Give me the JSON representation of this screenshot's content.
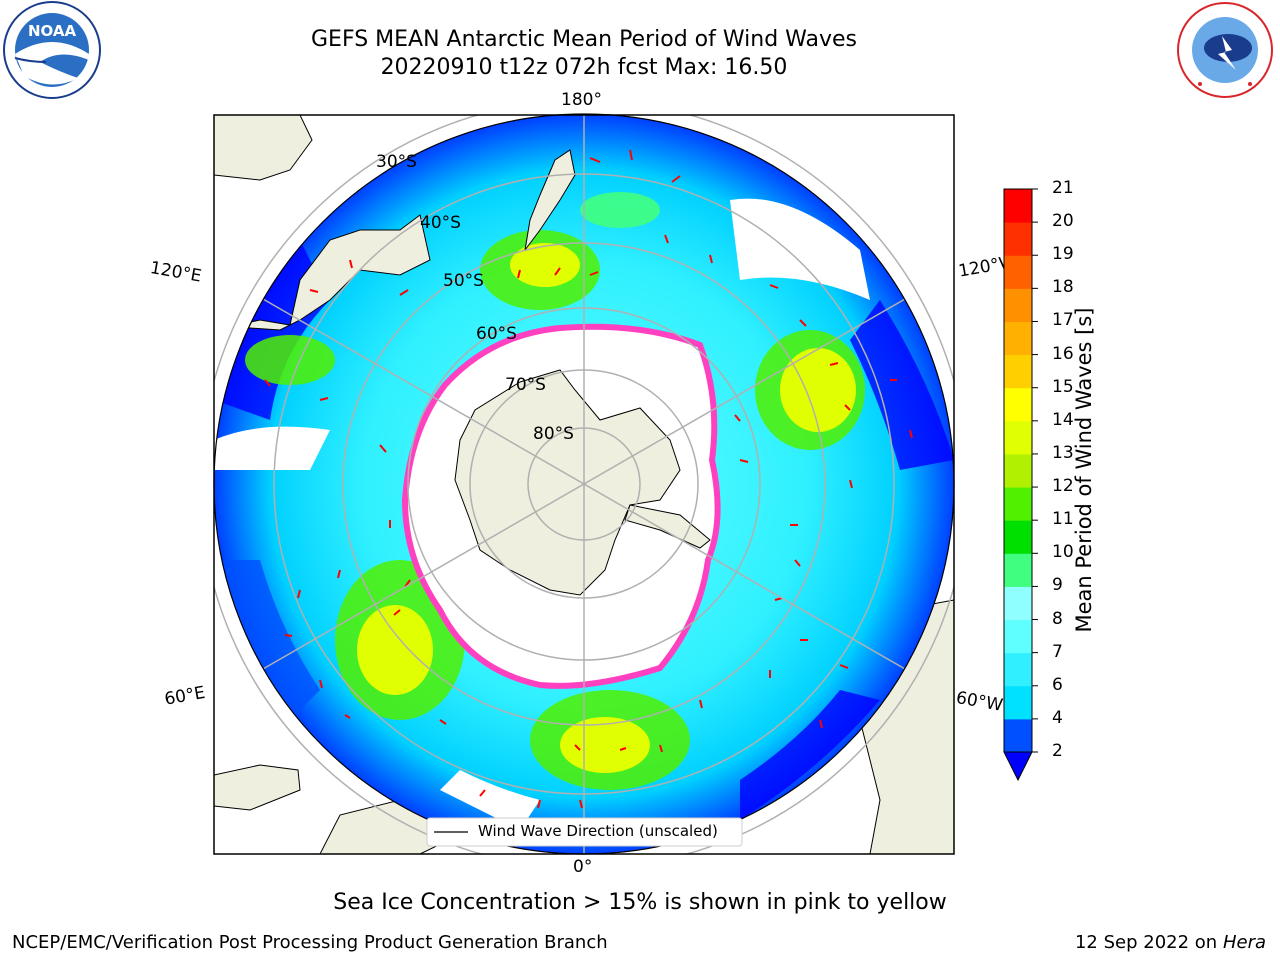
{
  "header": {
    "title_line1": "GEFS MEAN Antarctic Mean Period of Wind Waves",
    "title_line2": "20220910 t12z 072h fcst   Max: 16.50"
  },
  "logos": {
    "noaa_text": "NOAA",
    "noaa_ring_text": "NATIONAL OCEANIC AND ATMOSPHERIC ADMINISTRATION · U.S. DEPARTMENT OF COMMERCE",
    "nws_ring_text": "NATIONAL WEATHER SERVICE"
  },
  "map": {
    "longitude_labels": {
      "top": "180°",
      "bottom": "0°",
      "left_upper": "120°E",
      "left_lower": "60°E",
      "right_upper": "120°W",
      "right_lower": "60°W"
    },
    "latitude_labels": [
      "30°S",
      "40°S",
      "50°S",
      "60°S",
      "70°S",
      "80°S"
    ],
    "legend_label": "Wind Wave Direction (unscaled)",
    "colors": {
      "land": "#efefdf",
      "ice_edge": "#ff40c0"
    }
  },
  "colorbar": {
    "label": "Mean Period of Wind Waves [s]",
    "ticks": [
      "2",
      "4",
      "6",
      "7",
      "8",
      "9",
      "10",
      "11",
      "12",
      "13",
      "14",
      "15",
      "16",
      "17",
      "18",
      "19",
      "20",
      "21"
    ],
    "colors": [
      "#0050ff",
      "#00e0ff",
      "#30f0ff",
      "#60ffff",
      "#90ffff",
      "#40ff80",
      "#00e000",
      "#50f000",
      "#b0f000",
      "#e0ff00",
      "#ffff00",
      "#ffd000",
      "#ffb000",
      "#ff9000",
      "#ff6000",
      "#ff3000",
      "#ff0000"
    ],
    "extend_color": "#0000ff"
  },
  "footer": {
    "caption": "Sea Ice Concentration > 15% is shown in pink to yellow",
    "credit": "NCEP/EMC/Verification Post Processing Product Generation Branch",
    "date_text": "12 Sep 2022 on",
    "host": "Hera"
  }
}
